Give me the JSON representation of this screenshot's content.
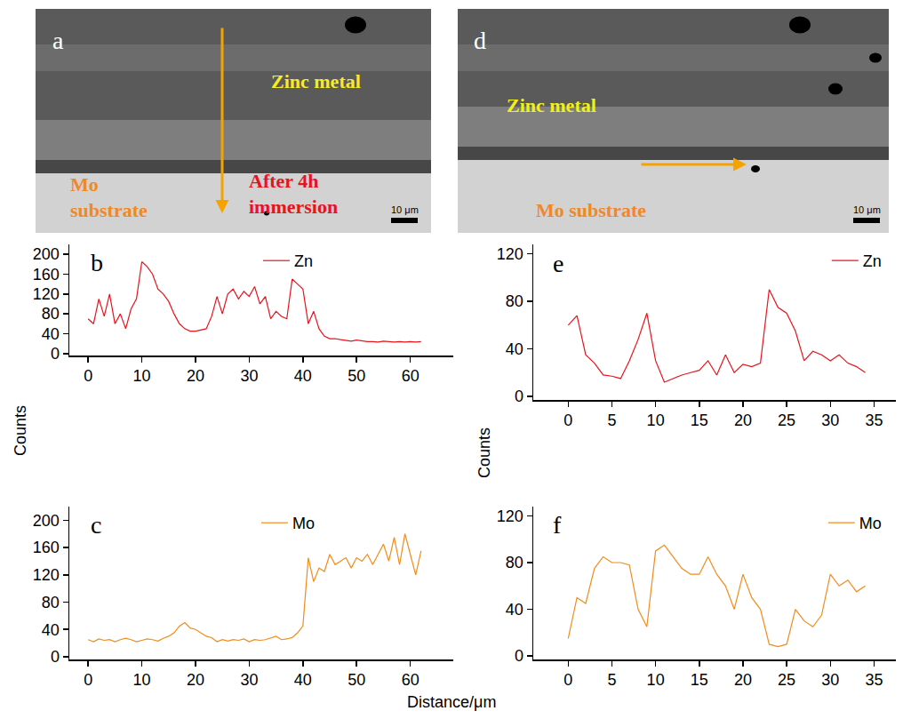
{
  "images": [
    {
      "letter": "a",
      "zinc": [
        "Zinc metal"
      ],
      "substrate": [
        "Mo",
        "substrate"
      ],
      "note": [
        "After 4h",
        "immersion"
      ],
      "scale": "10 μm"
    },
    {
      "letter": "d",
      "zinc": [
        "Zinc metal"
      ],
      "substrate": [
        "Mo substrate"
      ],
      "scale": "10 μm"
    }
  ],
  "xlabel": "Distance/μm",
  "chart_data": [
    {
      "type": "line",
      "title": "b",
      "ylabel": "Counts",
      "legend": "top center",
      "x": [
        0,
        1,
        2,
        3,
        4,
        5,
        6,
        7,
        8,
        9,
        10,
        11,
        12,
        13,
        14,
        15,
        16,
        17,
        18,
        19,
        20,
        21,
        22,
        23,
        24,
        25,
        26,
        27,
        28,
        29,
        30,
        31,
        32,
        33,
        34,
        35,
        36,
        37,
        38,
        39,
        40,
        41,
        42,
        43,
        44,
        45,
        46,
        47,
        48,
        49,
        50,
        51,
        52,
        53,
        54,
        55,
        56,
        57,
        58,
        59,
        60,
        61,
        62
      ],
      "series": [
        {
          "name": "Zn",
          "color": "#e8141c",
          "values": [
            70,
            60,
            110,
            75,
            120,
            60,
            80,
            50,
            90,
            110,
            185,
            175,
            160,
            130,
            120,
            105,
            80,
            60,
            50,
            45,
            45,
            48,
            50,
            75,
            115,
            80,
            120,
            130,
            110,
            125,
            115,
            135,
            100,
            115,
            70,
            85,
            75,
            70,
            150,
            140,
            130,
            60,
            85,
            50,
            35,
            30,
            30,
            28,
            27,
            25,
            27,
            25,
            24,
            24,
            23,
            25,
            24,
            23,
            24,
            23,
            24,
            23,
            24
          ]
        }
      ],
      "xlim": [
        -3.5,
        68
      ],
      "xticks": [
        0,
        10,
        20,
        30,
        40,
        50,
        60
      ],
      "ylim": [
        -4,
        220
      ],
      "yticks": [
        0,
        40,
        80,
        120,
        160,
        200
      ]
    },
    {
      "type": "line",
      "title": "c",
      "legend": "top center",
      "x": [
        0,
        1,
        2,
        3,
        4,
        5,
        6,
        7,
        8,
        9,
        10,
        11,
        12,
        13,
        14,
        15,
        16,
        17,
        18,
        19,
        20,
        21,
        22,
        23,
        24,
        25,
        26,
        27,
        28,
        29,
        30,
        31,
        32,
        33,
        34,
        35,
        36,
        37,
        38,
        39,
        40,
        41,
        42,
        43,
        44,
        45,
        46,
        47,
        48,
        49,
        50,
        51,
        52,
        53,
        54,
        55,
        56,
        57,
        58,
        59,
        60,
        61,
        62
      ],
      "series": [
        {
          "name": "Mo",
          "color": "#f28c1a",
          "values": [
            25,
            22,
            26,
            24,
            25,
            22,
            25,
            27,
            25,
            22,
            24,
            26,
            25,
            23,
            27,
            30,
            35,
            45,
            50,
            42,
            40,
            35,
            30,
            28,
            22,
            25,
            23,
            25,
            24,
            26,
            22,
            25,
            24,
            25,
            28,
            30,
            25,
            26,
            28,
            35,
            45,
            145,
            110,
            130,
            125,
            150,
            135,
            140,
            145,
            130,
            145,
            140,
            150,
            135,
            150,
            165,
            140,
            175,
            135,
            180,
            150,
            120,
            155
          ]
        }
      ],
      "xlim": [
        -3.5,
        68
      ],
      "xticks": [
        0,
        10,
        20,
        30,
        40,
        50,
        60
      ],
      "ylim": [
        -4,
        220
      ],
      "yticks": [
        0,
        40,
        80,
        120,
        160,
        200
      ]
    },
    {
      "type": "line",
      "title": "e",
      "ylabel": "Counts",
      "legend": "top right",
      "x": [
        0,
        1,
        2,
        3,
        4,
        5,
        6,
        7,
        8,
        9,
        10,
        11,
        12,
        13,
        14,
        15,
        16,
        17,
        18,
        19,
        20,
        21,
        22,
        23,
        24,
        25,
        26,
        27,
        28,
        29,
        30,
        31,
        32,
        33,
        34
      ],
      "series": [
        {
          "name": "Zn",
          "color": "#e8141c",
          "values": [
            60,
            68,
            35,
            28,
            18,
            17,
            15,
            30,
            48,
            70,
            30,
            12,
            15,
            18,
            20,
            22,
            30,
            18,
            35,
            20,
            27,
            25,
            28,
            90,
            75,
            70,
            55,
            30,
            38,
            35,
            30,
            35,
            28,
            25,
            20
          ]
        }
      ],
      "xlim": [
        -4,
        37.5
      ],
      "xticks": [
        0,
        5,
        10,
        15,
        20,
        25,
        30,
        35
      ],
      "ylim": [
        -3,
        128
      ],
      "yticks": [
        0,
        40,
        80,
        120
      ]
    },
    {
      "type": "line",
      "title": "f",
      "legend": "top right",
      "x": [
        0,
        1,
        2,
        3,
        4,
        5,
        6,
        7,
        8,
        9,
        10,
        11,
        12,
        13,
        14,
        15,
        16,
        17,
        18,
        19,
        20,
        21,
        22,
        23,
        24,
        25,
        26,
        27,
        28,
        29,
        30,
        31,
        32,
        33,
        34
      ],
      "series": [
        {
          "name": "Mo",
          "color": "#f28c1a",
          "values": [
            15,
            50,
            45,
            75,
            85,
            80,
            80,
            78,
            40,
            25,
            90,
            95,
            85,
            75,
            70,
            70,
            85,
            70,
            60,
            40,
            70,
            50,
            40,
            10,
            8,
            10,
            40,
            30,
            25,
            35,
            70,
            60,
            65,
            55,
            60
          ]
        }
      ],
      "xlim": [
        -4,
        37.5
      ],
      "xticks": [
        0,
        5,
        10,
        15,
        20,
        25,
        30,
        35
      ],
      "ylim": [
        -3,
        128
      ],
      "yticks": [
        0,
        40,
        80,
        120
      ]
    }
  ]
}
